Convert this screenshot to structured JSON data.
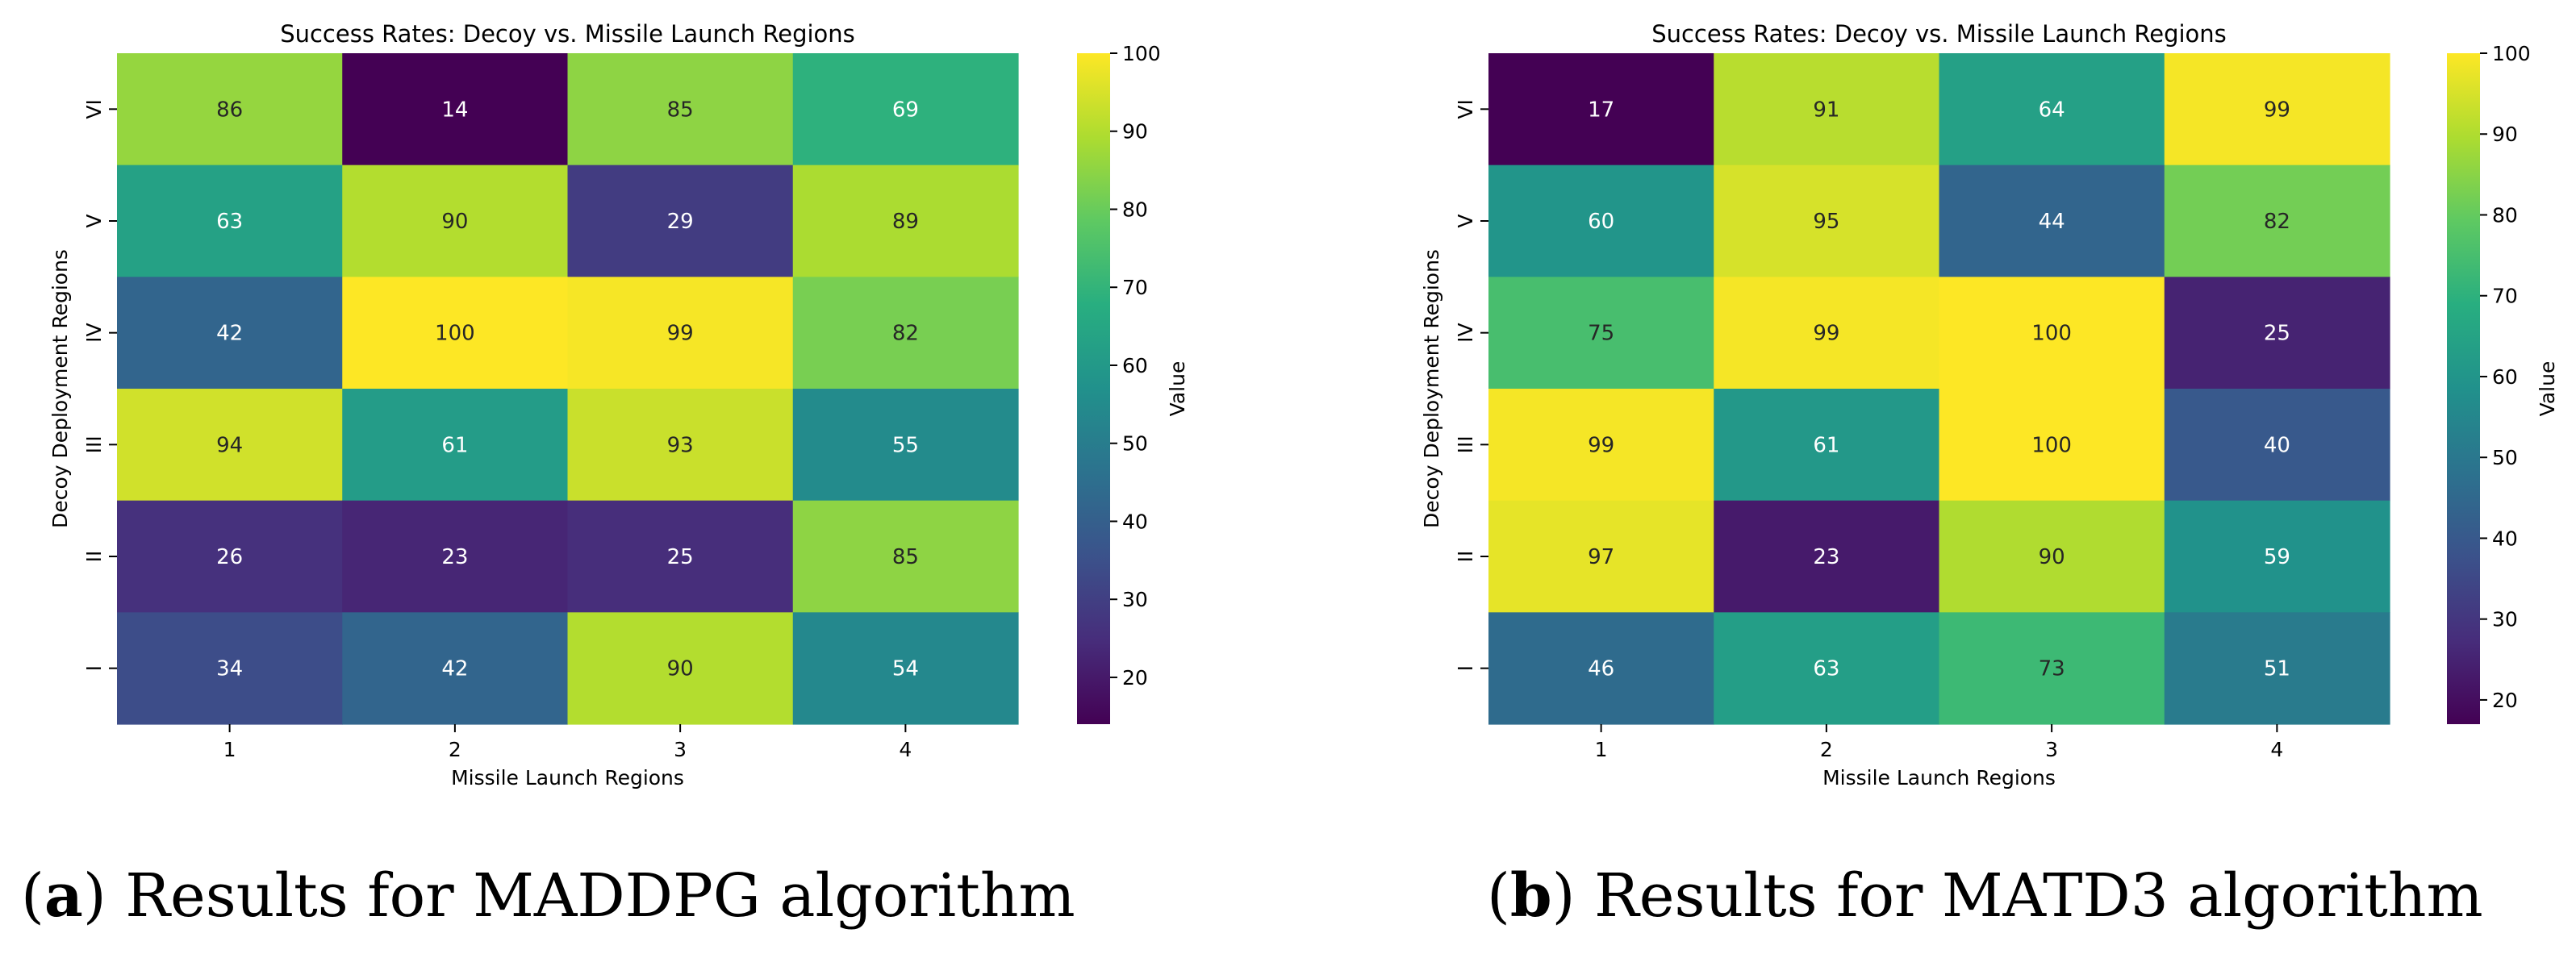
{
  "chart_data": [
    {
      "type": "heatmap",
      "title": "Success Rates: Decoy vs. Missile Launch Regions",
      "xlabel": "Missile Launch Regions",
      "ylabel": "Decoy Deployment Regions",
      "x_categories": [
        "1",
        "2",
        "3",
        "4"
      ],
      "y_categories_top_to_bottom": [
        "VI",
        "V",
        "IV",
        "III",
        "II",
        "I"
      ],
      "values": [
        [
          86,
          14,
          85,
          69
        ],
        [
          63,
          90,
          29,
          89
        ],
        [
          42,
          100,
          99,
          82
        ],
        [
          94,
          61,
          93,
          55
        ],
        [
          26,
          23,
          25,
          85
        ],
        [
          34,
          42,
          90,
          54
        ]
      ],
      "colormap": "viridis",
      "colorbar": {
        "label": "Value",
        "vmin": 14,
        "vmax": 100,
        "ticks": [
          20,
          30,
          40,
          50,
          60,
          70,
          80,
          90,
          100
        ]
      },
      "caption_label": "a",
      "caption_text": "Results for MADDPG algorithm"
    },
    {
      "type": "heatmap",
      "title": "Success Rates: Decoy vs. Missile Launch Regions",
      "xlabel": "Missile Launch Regions",
      "ylabel": "Decoy Deployment Regions",
      "x_categories": [
        "1",
        "2",
        "3",
        "4"
      ],
      "y_categories_top_to_bottom": [
        "VI",
        "V",
        "IV",
        "III",
        "II",
        "I"
      ],
      "values": [
        [
          17,
          91,
          64,
          99
        ],
        [
          60,
          95,
          44,
          82
        ],
        [
          75,
          99,
          100,
          25
        ],
        [
          99,
          61,
          100,
          40
        ],
        [
          97,
          23,
          90,
          59
        ],
        [
          46,
          63,
          73,
          51
        ]
      ],
      "colormap": "viridis",
      "colorbar": {
        "label": "Value",
        "vmin": 17,
        "vmax": 100,
        "ticks": [
          20,
          30,
          40,
          50,
          60,
          70,
          80,
          90,
          100
        ]
      },
      "caption_label": "b",
      "caption_text": "Results for MATD3 algorithm"
    }
  ]
}
